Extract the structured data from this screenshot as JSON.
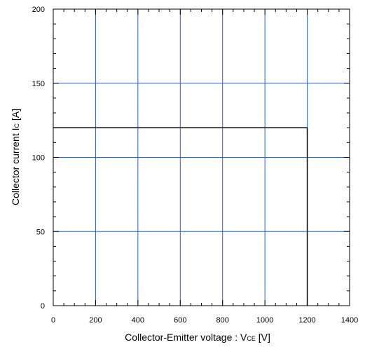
{
  "chart_data": {
    "type": "line",
    "title": "",
    "xlabel_main": "Collector-Emitter voltage : V",
    "xlabel_sub": "CE",
    "xlabel_unit": " [V]",
    "ylabel_main": "Collector current I",
    "ylabel_sub": "C",
    "ylabel_unit": " [A]",
    "xlim": [
      0,
      1400
    ],
    "ylim": [
      0,
      200
    ],
    "x_major_ticks": [
      0,
      200,
      400,
      600,
      800,
      1000,
      1200,
      1400
    ],
    "y_major_ticks": [
      0,
      50,
      100,
      150,
      200
    ],
    "x_minor_step": 50,
    "y_minor_step": 10,
    "grid": true,
    "grid_color": "#3060c0",
    "series": [
      {
        "color": "#000000",
        "x": [
          0,
          1200,
          1200
        ],
        "y": [
          120,
          120,
          0
        ]
      }
    ]
  }
}
